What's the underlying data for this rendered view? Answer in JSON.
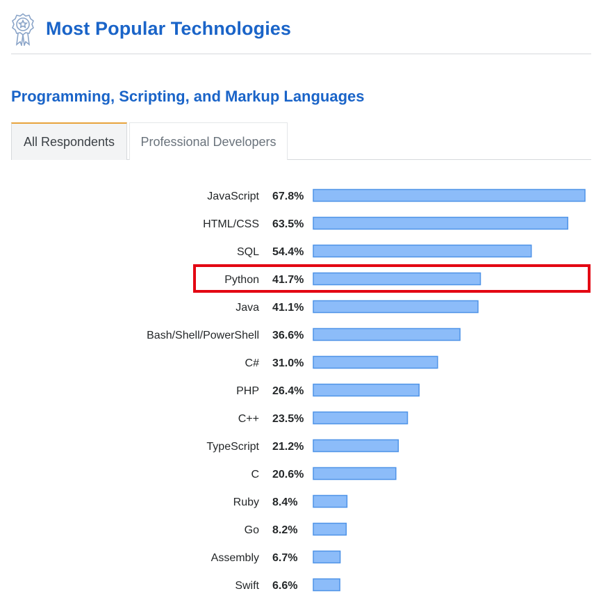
{
  "header": {
    "title": "Most Popular Technologies",
    "icon": "award-ribbon-icon",
    "accent_color": "#1a64c8"
  },
  "section": {
    "title": "Programming, Scripting, and Markup Languages"
  },
  "tabs": [
    {
      "label": "All Respondents",
      "active": true
    },
    {
      "label": "Professional Developers",
      "active": false
    }
  ],
  "chart_data": {
    "type": "bar",
    "orientation": "horizontal",
    "categories": [
      "JavaScript",
      "HTML/CSS",
      "SQL",
      "Python",
      "Java",
      "Bash/Shell/PowerShell",
      "C#",
      "PHP",
      "C++",
      "TypeScript",
      "C",
      "Ruby",
      "Go",
      "Assembly",
      "Swift"
    ],
    "values": [
      67.8,
      63.5,
      54.4,
      41.7,
      41.1,
      36.6,
      31.0,
      26.4,
      23.5,
      21.2,
      20.6,
      8.4,
      8.2,
      6.7,
      6.6
    ],
    "value_labels": [
      "67.8%",
      "63.5%",
      "54.4%",
      "41.7%",
      "41.1%",
      "36.6%",
      "31.0%",
      "26.4%",
      "23.5%",
      "21.2%",
      "20.6%",
      "8.4%",
      "8.2%",
      "6.7%",
      "6.6%"
    ],
    "xlim": [
      0,
      67.8
    ],
    "highlighted_category": "Python",
    "bar_color": "#8cbcf9",
    "bar_border_color": "#4f93e7",
    "highlight_color": "#e30613"
  }
}
